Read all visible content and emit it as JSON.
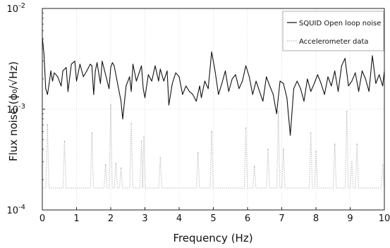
{
  "chart_data": {
    "type": "line",
    "title": "",
    "xlabel": "Frequency (Hz)",
    "ylabel": "Flux noise (ϕ₀/√Hz)",
    "xlim": [
      0,
      10
    ],
    "ylim": [
      0.0001,
      0.01
    ],
    "yscale": "log",
    "grid": true,
    "legend_position": "top-right",
    "x_ticks": [
      {
        "value": 0,
        "label": "0"
      },
      {
        "value": 1,
        "label": "1"
      },
      {
        "value": 2,
        "label": "2"
      },
      {
        "value": 3,
        "label": "3"
      },
      {
        "value": 4,
        "label": "4"
      },
      {
        "value": 5,
        "label": "5"
      },
      {
        "value": 6,
        "label": "6"
      },
      {
        "value": 7,
        "label": "7"
      },
      {
        "value": 8,
        "label": "8"
      },
      {
        "value": 9,
        "label": "9"
      },
      {
        "value": 10,
        "label": "10"
      }
    ],
    "y_ticks": [
      {
        "value": 0.0001,
        "base": "10",
        "exp": "-4"
      },
      {
        "value": 0.001,
        "base": "10",
        "exp": "-3"
      },
      {
        "value": 0.01,
        "base": "10",
        "exp": "-2"
      }
    ],
    "series": [
      {
        "name": "SQUID Open loop noise",
        "color": "#111111",
        "style": "solid",
        "x": [
          0,
          0.05,
          0.1,
          0.15,
          0.2,
          0.25,
          0.3,
          0.35,
          0.45,
          0.55,
          0.6,
          0.7,
          0.75,
          0.85,
          0.95,
          1.0,
          1.1,
          1.2,
          1.3,
          1.4,
          1.45,
          1.5,
          1.55,
          1.6,
          1.7,
          1.75,
          1.85,
          1.95,
          2.0,
          2.05,
          2.1,
          2.2,
          2.3,
          2.35,
          2.45,
          2.55,
          2.6,
          2.65,
          2.75,
          2.85,
          2.9,
          2.95,
          3.0,
          3.1,
          3.2,
          3.3,
          3.4,
          3.45,
          3.55,
          3.65,
          3.7,
          3.8,
          3.9,
          4.0,
          4.1,
          4.2,
          4.3,
          4.4,
          4.5,
          4.6,
          4.65,
          4.75,
          4.85,
          4.95,
          5.05,
          5.15,
          5.25,
          5.35,
          5.45,
          5.55,
          5.65,
          5.75,
          5.85,
          5.95,
          6.05,
          6.15,
          6.25,
          6.35,
          6.45,
          6.55,
          6.65,
          6.75,
          6.85,
          6.95,
          7.05,
          7.15,
          7.25,
          7.35,
          7.45,
          7.55,
          7.65,
          7.75,
          7.85,
          7.95,
          8.05,
          8.15,
          8.25,
          8.35,
          8.45,
          8.55,
          8.65,
          8.75,
          8.85,
          8.95,
          9.05,
          9.15,
          9.25,
          9.35,
          9.45,
          9.55,
          9.65,
          9.75,
          9.85,
          9.95,
          10.0
        ],
        "y": [
          0.0052,
          0.0035,
          0.0016,
          0.0014,
          0.0018,
          0.0024,
          0.0019,
          0.0023,
          0.0021,
          0.0017,
          0.0024,
          0.0026,
          0.0015,
          0.0028,
          0.003,
          0.0019,
          0.0028,
          0.0021,
          0.0024,
          0.0028,
          0.0027,
          0.0014,
          0.0024,
          0.0029,
          0.0018,
          0.003,
          0.0022,
          0.0016,
          0.0026,
          0.0029,
          0.0027,
          0.0018,
          0.0012,
          0.0008,
          0.0017,
          0.0021,
          0.0015,
          0.0028,
          0.0019,
          0.0024,
          0.0027,
          0.0016,
          0.0013,
          0.0022,
          0.0019,
          0.0027,
          0.0019,
          0.0025,
          0.0019,
          0.0024,
          0.0011,
          0.0018,
          0.0023,
          0.0021,
          0.0014,
          0.0017,
          0.0015,
          0.0014,
          0.0012,
          0.0017,
          0.0013,
          0.0019,
          0.0016,
          0.0037,
          0.0024,
          0.0014,
          0.0018,
          0.0024,
          0.0015,
          0.002,
          0.0022,
          0.0016,
          0.0019,
          0.0027,
          0.0021,
          0.0014,
          0.0019,
          0.0015,
          0.0012,
          0.0021,
          0.0017,
          0.0014,
          0.0009,
          0.0019,
          0.0018,
          0.0013,
          0.00055,
          0.0016,
          0.0019,
          0.0016,
          0.0012,
          0.002,
          0.0015,
          0.0018,
          0.0022,
          0.0018,
          0.0014,
          0.0021,
          0.0017,
          0.0024,
          0.0015,
          0.0027,
          0.0032,
          0.0017,
          0.0019,
          0.0023,
          0.0015,
          0.0024,
          0.002,
          0.0015,
          0.0034,
          0.0018,
          0.0022,
          0.0017,
          0.0024
        ]
      },
      {
        "name": "Accelerometer data",
        "color": "#b8b8b8",
        "style": "dotted",
        "baseline": 0.000165,
        "peaks": [
          {
            "x": 0.15,
            "y": 0.0007
          },
          {
            "x": 0.65,
            "y": 0.00048
          },
          {
            "x": 1.45,
            "y": 0.00058
          },
          {
            "x": 1.85,
            "y": 0.00028
          },
          {
            "x": 2.0,
            "y": 0.0011
          },
          {
            "x": 2.15,
            "y": 0.00029
          },
          {
            "x": 2.3,
            "y": 0.00026
          },
          {
            "x": 2.6,
            "y": 0.00072
          },
          {
            "x": 2.9,
            "y": 0.00048
          },
          {
            "x": 2.97,
            "y": 0.00053
          },
          {
            "x": 3.45,
            "y": 0.00033
          },
          {
            "x": 4.55,
            "y": 0.00037
          },
          {
            "x": 4.95,
            "y": 0.0006
          },
          {
            "x": 5.95,
            "y": 0.00065
          },
          {
            "x": 6.2,
            "y": 0.00027
          },
          {
            "x": 6.6,
            "y": 0.0004
          },
          {
            "x": 6.9,
            "y": 0.00095
          },
          {
            "x": 7.05,
            "y": 0.0004
          },
          {
            "x": 7.85,
            "y": 0.00058
          },
          {
            "x": 8.0,
            "y": 0.00038
          },
          {
            "x": 8.55,
            "y": 0.00045
          },
          {
            "x": 8.9,
            "y": 0.00095
          },
          {
            "x": 9.05,
            "y": 0.0003
          },
          {
            "x": 9.2,
            "y": 0.00045
          },
          {
            "x": 9.95,
            "y": 0.00028
          }
        ]
      }
    ]
  }
}
